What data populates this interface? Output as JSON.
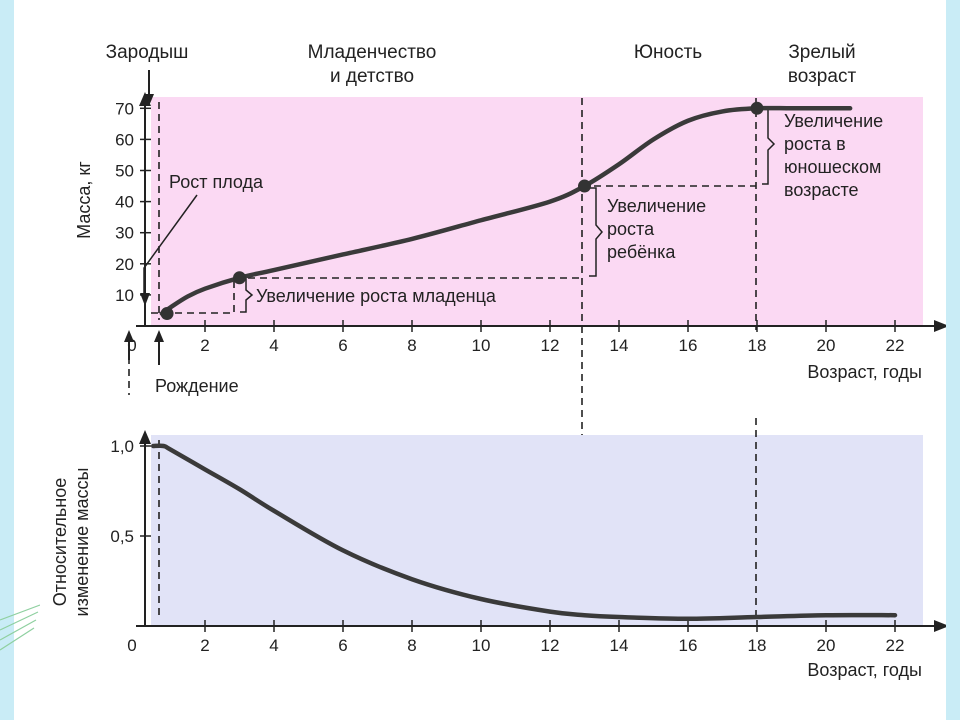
{
  "chart_data": [
    {
      "type": "line",
      "xlabel": "Возраст, годы",
      "ylabel": "Масса, кг",
      "xlim": [
        0,
        23
      ],
      "ylim": [
        0,
        70
      ],
      "x_ticks": [
        "0",
        "2",
        "4",
        "6",
        "8",
        "10",
        "12",
        "14",
        "16",
        "18",
        "20",
        "22"
      ],
      "y_ticks": [
        "10",
        "20",
        "30",
        "40",
        "50",
        "60",
        "70"
      ],
      "background": "#fbd9f3",
      "stages": [
        {
          "label": "Зародыш"
        },
        {
          "label_lines": [
            "Младенчество",
            "и детство"
          ]
        },
        {
          "label": "Юность"
        },
        {
          "label_lines": [
            "Зрелый",
            "возраст"
          ]
        }
      ],
      "annotations": {
        "fetal_growth": "Рост плода",
        "birth": "Рождение",
        "infant_growth": "Увеличение роста младенца",
        "child_growth": [
          "Увеличение",
          "роста",
          "ребёнка"
        ],
        "youth_growth": [
          "Увеличение",
          "роста в",
          "юношеском",
          "возрасте"
        ]
      },
      "series": [
        {
          "x": [
            0.75,
            1.0,
            1.5,
            2.0,
            3.0,
            4.0,
            6.0,
            8.0,
            10.0,
            12.0,
            13.0,
            14.0,
            15.0,
            16.0,
            17.0,
            18.0,
            19.0,
            20.0,
            20.7
          ],
          "values": [
            4,
            6,
            9.5,
            12,
            15.5,
            18,
            23,
            28,
            34,
            40,
            45,
            52,
            60,
            66,
            69,
            70,
            70,
            70,
            70
          ]
        }
      ],
      "markers": [
        {
          "x": 0.9,
          "y": 4
        },
        {
          "x": 3.0,
          "y": 15.5
        },
        {
          "x": 13.0,
          "y": 45
        },
        {
          "x": 18.0,
          "y": 70
        }
      ]
    },
    {
      "type": "line",
      "xlabel": "Возраст, годы",
      "ylabel_lines": [
        "Относительное",
        "изменение массы"
      ],
      "xlim": [
        0,
        23
      ],
      "ylim": [
        0,
        1.1
      ],
      "x_ticks": [
        "0",
        "2",
        "4",
        "6",
        "8",
        "10",
        "12",
        "14",
        "16",
        "18",
        "20",
        "22"
      ],
      "y_ticks": [
        "0,5",
        "1,0"
      ],
      "background": "#e1e3f7",
      "series": [
        {
          "x": [
            0.5,
            0.8,
            1.0,
            2.0,
            3.0,
            4.0,
            6.0,
            8.0,
            10.0,
            12.0,
            13.0,
            14.0,
            16.0,
            18.0,
            20.0,
            22.0
          ],
          "values": [
            1.0,
            1.0,
            0.98,
            0.87,
            0.76,
            0.64,
            0.42,
            0.26,
            0.15,
            0.08,
            0.06,
            0.05,
            0.04,
            0.05,
            0.06,
            0.06
          ]
        }
      ]
    }
  ]
}
